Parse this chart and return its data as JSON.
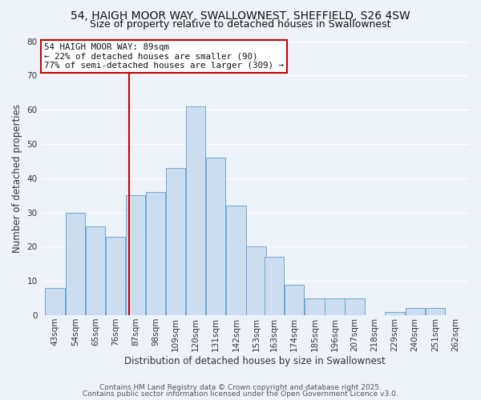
{
  "title1": "54, HAIGH MOOR WAY, SWALLOWNEST, SHEFFIELD, S26 4SW",
  "title2": "Size of property relative to detached houses in Swallownest",
  "xlabel": "Distribution of detached houses by size in Swallownest",
  "ylabel": "Number of detached properties",
  "bin_labels": [
    "43sqm",
    "54sqm",
    "65sqm",
    "76sqm",
    "87sqm",
    "98sqm",
    "109sqm",
    "120sqm",
    "131sqm",
    "142sqm",
    "153sqm",
    "163sqm",
    "174sqm",
    "185sqm",
    "196sqm",
    "207sqm",
    "218sqm",
    "229sqm",
    "240sqm",
    "251sqm",
    "262sqm"
  ],
  "bin_values": [
    8,
    30,
    26,
    23,
    35,
    36,
    43,
    61,
    46,
    32,
    20,
    17,
    9,
    5,
    5,
    5,
    0,
    1,
    2,
    2,
    0
  ],
  "bar_color": "#ccddf0",
  "bar_edge_color": "#6aaad4",
  "bin_edges": [
    43,
    54,
    65,
    76,
    87,
    98,
    109,
    120,
    131,
    142,
    153,
    163,
    174,
    185,
    196,
    207,
    218,
    229,
    240,
    251,
    262
  ],
  "bin_width": 11,
  "ylim": [
    0,
    80
  ],
  "yticks": [
    0,
    10,
    20,
    30,
    40,
    50,
    60,
    70,
    80
  ],
  "annotation_box_text": "54 HAIGH MOOR WAY: 89sqm\n← 22% of detached houses are smaller (90)\n77% of semi-detached houses are larger (309) →",
  "annotation_box_color": "#ffffff",
  "annotation_box_edge_color": "#cc0000",
  "vline_color": "#cc0000",
  "vline_x": 89,
  "footer1": "Contains HM Land Registry data © Crown copyright and database right 2025.",
  "footer2": "Contains public sector information licensed under the Open Government Licence v3.0.",
  "background_color": "#eef2f9",
  "grid_color": "#ffffff",
  "title_fontsize": 10,
  "subtitle_fontsize": 9,
  "label_fontsize": 8.5,
  "tick_fontsize": 7.5,
  "annotation_fontsize": 7.8,
  "footer_fontsize": 6.5
}
